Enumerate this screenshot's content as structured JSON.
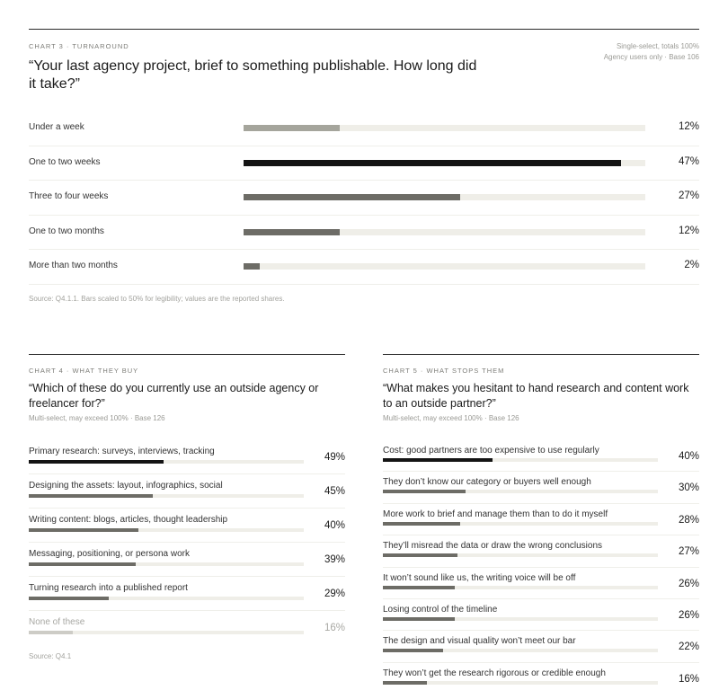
{
  "chart_data": [
    {
      "type": "bar",
      "eyebrow": "CHART 3 · TURNAROUND",
      "title": "“Your last agency project, brief to something publishable. How long did it take?”",
      "meta": [
        "Single-select, totals 100%",
        "Agency users only · Base 106"
      ],
      "categories": [
        "Under a week",
        "One to two weeks",
        "Three to four weeks",
        "One to two months",
        "More than two months"
      ],
      "values": [
        12,
        47,
        27,
        12,
        2
      ],
      "value_labels": [
        "12%",
        "47%",
        "27%",
        "12%",
        "2%"
      ],
      "highlight_index": 1,
      "source": "Source: Q4.1.1. Bars scaled to 50% for legibility; values are the reported shares.",
      "xlim": [
        0,
        50
      ]
    },
    {
      "type": "bar",
      "eyebrow": "CHART 4 · WHAT THEY BUY",
      "title": "“Which of these do you currently use an outside agency or freelancer for?”",
      "subtitle": "Multi-select, may exceed 100% · Base 126",
      "categories": [
        "Primary research: surveys, interviews, tracking",
        "Designing the assets: layout, infographics, social",
        "Writing content: blogs, articles, thought leadership",
        "Messaging, positioning, or persona work",
        "Turning research into a published report",
        "None of these"
      ],
      "values": [
        49,
        45,
        40,
        39,
        29,
        16
      ],
      "value_labels": [
        "49%",
        "45%",
        "40%",
        "39%",
        "29%",
        "16%"
      ],
      "highlight_index": 0,
      "muted_index": 5,
      "source": "Source: Q4.1",
      "xlim": [
        0,
        100
      ]
    },
    {
      "type": "bar",
      "eyebrow": "CHART 5 · WHAT STOPS THEM",
      "title": "“What makes you hesitant to hand research and content work to an outside partner?”",
      "subtitle": "Multi-select, may exceed 100% · Base 126",
      "categories": [
        "Cost: good partners are too expensive to use regularly",
        "They don’t know our category or buyers well enough",
        "More work to brief and manage them than to do it myself",
        "They’ll misread the data or draw the wrong conclusions",
        "It won’t sound like us, the writing voice will be off",
        "Losing control of the timeline",
        "The design and visual quality won’t meet our bar",
        "They won’t get the research rigorous or credible enough"
      ],
      "values": [
        40,
        30,
        28,
        27,
        26,
        26,
        22,
        16
      ],
      "value_labels": [
        "40%",
        "30%",
        "28%",
        "27%",
        "26%",
        "26%",
        "22%",
        "16%"
      ],
      "highlight_index": 0,
      "xlim": [
        0,
        100
      ]
    }
  ],
  "colors": {
    "highlight": "#141414",
    "normal": "#6d6c66",
    "chart3_first": "#a5a59c",
    "muted": "#cdccc6",
    "track": "#efeee8"
  }
}
